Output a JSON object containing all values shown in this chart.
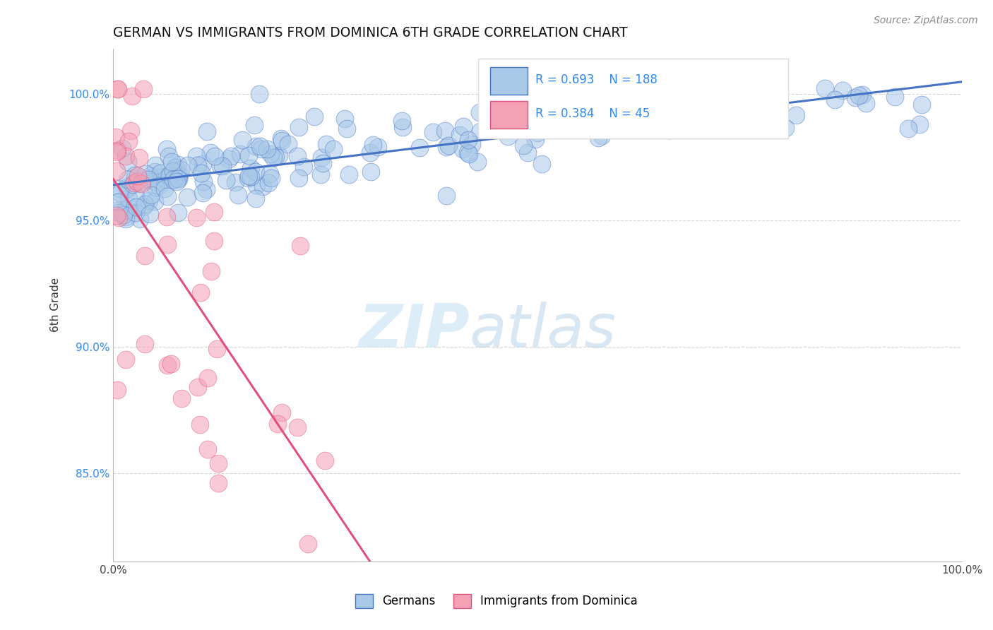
{
  "title": "GERMAN VS IMMIGRANTS FROM DOMINICA 6TH GRADE CORRELATION CHART",
  "source_text": "Source: ZipAtlas.com",
  "ylabel": "6th Grade",
  "xlabel": "",
  "xlim": [
    0.0,
    1.0
  ],
  "ylim": [
    0.815,
    1.018
  ],
  "yticks": [
    0.85,
    0.9,
    0.95,
    1.0
  ],
  "ytick_labels": [
    "85.0%",
    "90.0%",
    "95.0%",
    "100.0%"
  ],
  "xticks": [
    0.0,
    0.25,
    0.5,
    0.75,
    1.0
  ],
  "xtick_labels": [
    "0.0%",
    "",
    "",
    "",
    "100.0%"
  ],
  "german_R": 0.693,
  "german_N": 188,
  "dominica_R": 0.384,
  "dominica_N": 45,
  "german_color": "#a8c8e8",
  "dominica_color": "#f4a0b5",
  "german_line_color": "#4472c4",
  "dominica_line_color": "#e0507a",
  "legend_german": "Germans",
  "legend_dominica": "Immigrants from Dominica",
  "background_color": "#ffffff",
  "grid_color": "#cccccc",
  "watermark_zip": "ZIP",
  "watermark_atlas": "atlas"
}
